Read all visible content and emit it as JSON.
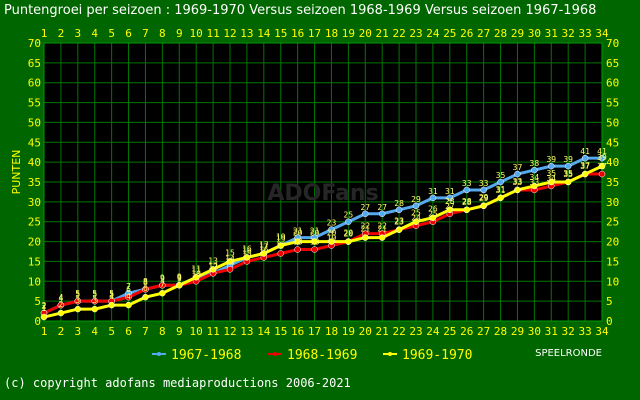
{
  "title": "Puntengroei per seizoen : 1969-1970 Versus seizoen 1968-1969 Versus seizoen 1967-1968",
  "copyright": "(c) copyright adofans mediaproductions 2006-2021",
  "watermark": "ADOFans",
  "colors": {
    "background": "#006600",
    "plot_background": "#000000",
    "grid": "#007700",
    "axis_text": "#ffff00",
    "title_text": "#ffffff",
    "label_text": "#ffff00"
  },
  "chart_data": {
    "type": "line",
    "xlabel": "SPEELRONDE",
    "ylabel": "PUNTEN",
    "xlim": [
      1,
      34
    ],
    "ylim": [
      0,
      70
    ],
    "ytick_step": 5,
    "grid": true,
    "legend_position": "bottom",
    "x": [
      1,
      2,
      3,
      4,
      5,
      6,
      7,
      8,
      9,
      10,
      11,
      12,
      13,
      14,
      15,
      16,
      17,
      18,
      19,
      20,
      21,
      22,
      23,
      24,
      25,
      26,
      27,
      28,
      29,
      30,
      31,
      32,
      33,
      34
    ],
    "series": [
      {
        "name": "1967-1968",
        "color": "#55aaee",
        "values": [
          2,
          4,
          5,
          5,
          5,
          7,
          8,
          9,
          9,
          11,
          12,
          14,
          16,
          17,
          19,
          21,
          21,
          23,
          25,
          27,
          27,
          28,
          29,
          31,
          31,
          33,
          33,
          35,
          37,
          38,
          39,
          39,
          41,
          41
        ]
      },
      {
        "name": "1968-1969",
        "color": "#ee0000",
        "values": [
          2,
          4,
          5,
          5,
          5,
          6,
          8,
          9,
          9,
          10,
          12,
          13,
          15,
          16,
          17,
          18,
          18,
          19,
          20,
          22,
          22,
          23,
          24,
          25,
          27,
          28,
          29,
          31,
          33,
          33,
          34,
          35,
          37,
          37
        ]
      },
      {
        "name": "1969-1970",
        "color": "#ffff00",
        "values": [
          1,
          2,
          3,
          3,
          4,
          4,
          6,
          7,
          9,
          11,
          13,
          15,
          16,
          17,
          19,
          20,
          20,
          20,
          20,
          21,
          21,
          23,
          25,
          26,
          28,
          28,
          29,
          31,
          33,
          34,
          35,
          35,
          37,
          39
        ]
      }
    ]
  }
}
